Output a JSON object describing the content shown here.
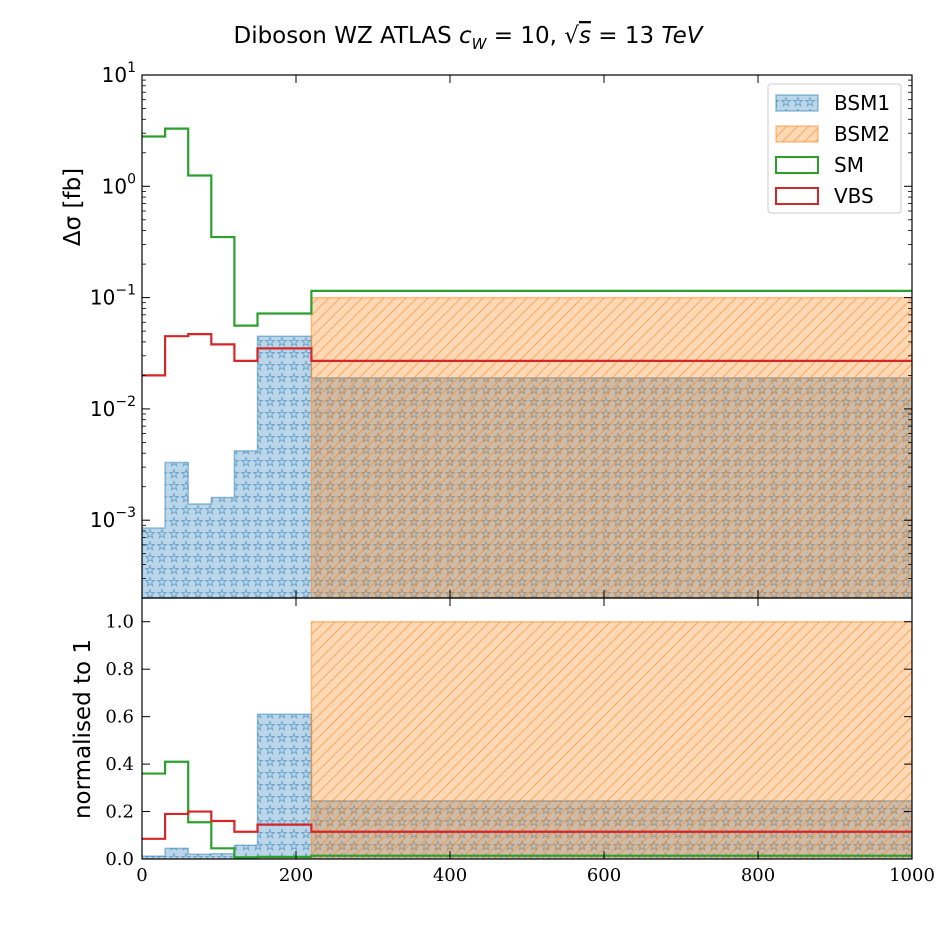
{
  "figure": {
    "title_prefix": "Diboson  WZ ATLAS ",
    "title_cw_sym": "c",
    "title_cw_sub": "W",
    "title_cw_value": " = 10,  ",
    "title_sqrt_arg": "s",
    "title_energy": " = 13 ",
    "title_unit": "TeV"
  },
  "colors": {
    "BSM1": "#1f77b4",
    "BSM2": "#ff7f0e",
    "SM": "#2ca02c",
    "VBS": "#d62728"
  },
  "chart_data": [
    {
      "id": "top",
      "type": "area",
      "ylabel": "Δσ [fb]",
      "xlim": [
        0,
        1000
      ],
      "ylim": [
        0.0002,
        10
      ],
      "yscale": "log",
      "y_ticks": [
        {
          "base": "10",
          "exp": "1"
        },
        {
          "base": "10",
          "exp": "0"
        },
        {
          "base": "10",
          "exp": "−1"
        },
        {
          "base": "10",
          "exp": "−2"
        },
        {
          "base": "10",
          "exp": "−3"
        }
      ],
      "y_tick_values": [
        10,
        1,
        0.1,
        0.01,
        0.001
      ],
      "legend": {
        "position": "top-right",
        "entries": [
          {
            "label": "BSM1",
            "style": "filled-stars"
          },
          {
            "label": "BSM2",
            "style": "filled-hatch"
          },
          {
            "label": "SM",
            "style": "step"
          },
          {
            "label": "VBS",
            "style": "step"
          }
        ]
      },
      "bin_edges": [
        0,
        30,
        60,
        90,
        120,
        150,
        220,
        1000
      ],
      "series": [
        {
          "name": "BSM1",
          "style": "filled-stars",
          "values": [
            0.00085,
            0.0033,
            0.0014,
            0.0016,
            0.0042,
            0.045,
            0.019
          ]
        },
        {
          "name": "BSM2",
          "style": "filled-hatch",
          "values": [
            0,
            0,
            0,
            0,
            0,
            0,
            0.1
          ]
        },
        {
          "name": "SM",
          "style": "step",
          "values": [
            2.8,
            3.3,
            1.25,
            0.35,
            0.056,
            0.072,
            0.115
          ]
        },
        {
          "name": "VBS",
          "style": "step",
          "values": [
            0.02,
            0.045,
            0.047,
            0.038,
            0.027,
            0.035,
            0.027
          ]
        }
      ]
    },
    {
      "id": "bottom",
      "type": "area",
      "ylabel": "normalised to 1",
      "xlabel": "",
      "xlim": [
        0,
        1000
      ],
      "ylim": [
        0,
        1.1
      ],
      "x_ticks": [
        "0",
        "200",
        "400",
        "600",
        "800",
        "1000"
      ],
      "x_tick_values": [
        0,
        200,
        400,
        600,
        800,
        1000
      ],
      "y_ticks": [
        "0.0",
        "0.2",
        "0.4",
        "0.6",
        "0.8",
        "1.0"
      ],
      "y_tick_values": [
        0,
        0.2,
        0.4,
        0.6,
        0.8,
        1.0
      ],
      "bin_edges": [
        0,
        30,
        60,
        90,
        120,
        150,
        220,
        1000
      ],
      "series": [
        {
          "name": "BSM1",
          "style": "filled-stars",
          "values": [
            0.012,
            0.045,
            0.02,
            0.022,
            0.058,
            0.61,
            0.245
          ]
        },
        {
          "name": "BSM2",
          "style": "filled-hatch",
          "values": [
            0,
            0,
            0,
            0,
            0,
            0,
            1.0
          ]
        },
        {
          "name": "SM",
          "style": "step",
          "values": [
            0.36,
            0.41,
            0.155,
            0.045,
            0.007,
            0.009,
            0.014
          ]
        },
        {
          "name": "VBS",
          "style": "step",
          "values": [
            0.085,
            0.19,
            0.2,
            0.16,
            0.115,
            0.145,
            0.115
          ]
        }
      ]
    }
  ]
}
